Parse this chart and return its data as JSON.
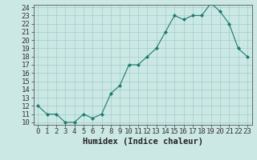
{
  "x": [
    0,
    1,
    2,
    3,
    4,
    5,
    6,
    7,
    8,
    9,
    10,
    11,
    12,
    13,
    14,
    15,
    16,
    17,
    18,
    19,
    20,
    21,
    22,
    23
  ],
  "y": [
    12,
    11,
    11,
    10,
    10,
    11,
    10.5,
    11,
    13.5,
    14.5,
    17,
    17,
    18,
    19,
    21,
    23,
    22.5,
    23,
    23,
    24.5,
    23.5,
    22,
    19,
    18
  ],
  "xlabel": "Humidex (Indice chaleur)",
  "line_color": "#1a7a6e",
  "marker_color": "#1a7a6e",
  "bg_color": "#cce8e5",
  "grid_color": "#9ececa",
  "ylim_min": 10,
  "ylim_max": 24,
  "xlim_min": -0.5,
  "xlim_max": 23.5,
  "yticks": [
    10,
    11,
    12,
    13,
    14,
    15,
    16,
    17,
    18,
    19,
    20,
    21,
    22,
    23,
    24
  ],
  "xticks": [
    0,
    1,
    2,
    3,
    4,
    5,
    6,
    7,
    8,
    9,
    10,
    11,
    12,
    13,
    14,
    15,
    16,
    17,
    18,
    19,
    20,
    21,
    22,
    23
  ],
  "tick_fontsize": 6.5,
  "xlabel_fontsize": 7.5
}
